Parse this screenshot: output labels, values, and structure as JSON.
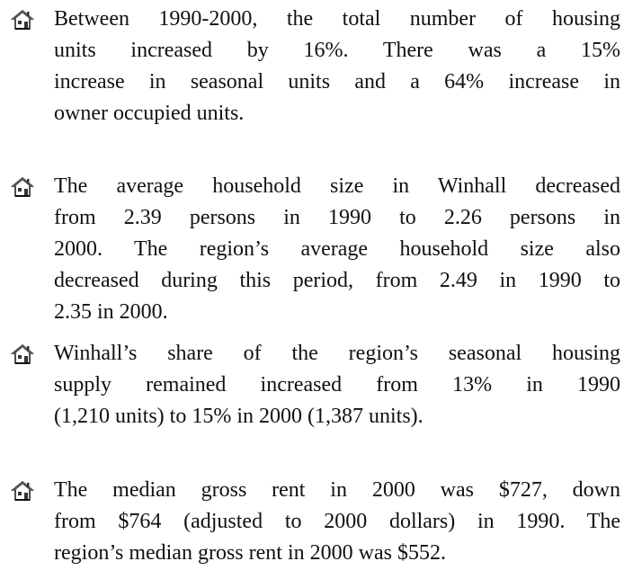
{
  "bullets": [
    {
      "lines": [
        "Between 1990-2000, the total number of housing",
        "units increased by 16%.  There was a 15%",
        "increase in seasonal units and a 64% increase in",
        "owner occupied units."
      ]
    },
    {
      "lines": [
        "The average household size in Winhall decreased",
        "from 2.39 persons in 1990 to 2.26 persons in",
        "2000.  The region’s average household size also",
        "decreased during this period, from 2.49 in 1990 to",
        "2.35 in 2000."
      ]
    },
    {
      "lines": [
        "Winhall’s share of the region’s seasonal housing",
        "supply remained increased from 13% in 1990",
        "(1,210 units) to 15% in 2000 (1,387 units)."
      ]
    },
    {
      "lines": [
        "The median gross rent in 2000 was $727, down",
        "from $764 (adjusted to 2000 dollars) in 1990.  The",
        "region’s median gross rent in 2000 was $552."
      ]
    }
  ]
}
